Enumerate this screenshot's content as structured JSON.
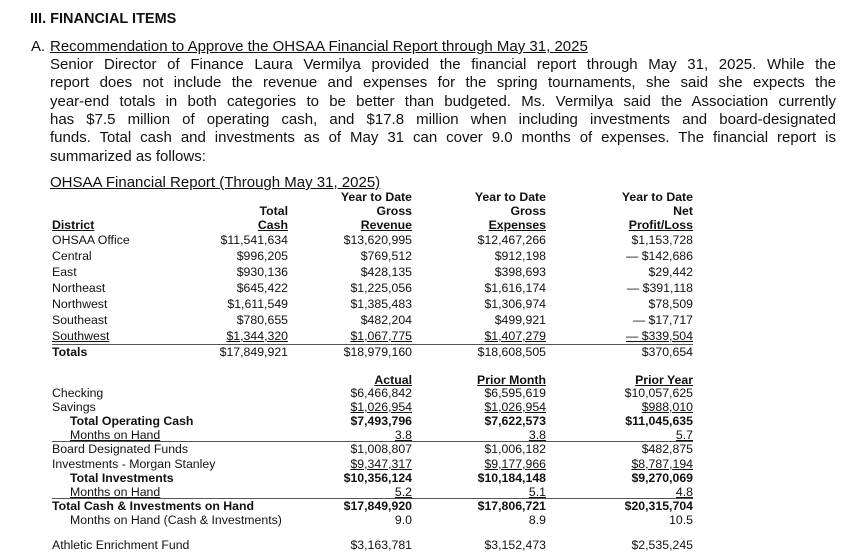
{
  "section_heading": "III. FINANCIAL ITEMS",
  "item": {
    "letter": "A.",
    "title": "Recommendation to Approve the OHSAA Financial Report through May 31, 2025",
    "paragraph_lines": [
      "Senior Director of Finance Laura Vermilya provided the financial report through May 31, 2025. While the",
      "report does not include the revenue and expenses for the spring tournaments, she said she expects the",
      "year-end totals in both categories to be better than budgeted. Ms. Vermilya said the Association currently",
      "has $7.5 million of operating cash, and $17.8 million when including investments and board-designated",
      "funds. Total cash and investments as of May 31 can cover 9.0 months of expenses. The financial report is",
      "summarized as follows:"
    ]
  },
  "report_title": "OHSAA Financial Report (Through May 31, 2025)",
  "district_table": {
    "headers": [
      [
        "",
        "",
        "District"
      ],
      [
        "",
        "Total",
        "Cash"
      ],
      [
        "Year to Date",
        "Gross",
        "Revenue"
      ],
      [
        "Year to Date",
        "Gross",
        "Expenses"
      ],
      [
        "Year to Date",
        "Net",
        "Profit/Loss"
      ]
    ],
    "rows": [
      [
        "OHSAA Office",
        "$11,541,634",
        "$13,620,995",
        "$12,467,266",
        "$1,153,728"
      ],
      [
        "Central",
        "$996,205",
        "$769,512",
        "$912,198",
        "— $142,686"
      ],
      [
        "East",
        "$930,136",
        "$428,135",
        "$398,693",
        "$29,442"
      ],
      [
        "Northeast",
        "$645,422",
        "$1,225,056",
        "$1,616,174",
        "— $391,118"
      ],
      [
        "Northwest",
        "$1,611,549",
        "$1,385,483",
        "$1,306,974",
        "$78,509"
      ],
      [
        "Southeast",
        "$780,655",
        "$482,204",
        "$499,921",
        "— $17,717"
      ],
      [
        "Southwest",
        "$1,344,320",
        "$1,067,775",
        "$1,407,279",
        "— $339,504"
      ]
    ],
    "totals": [
      "Totals",
      "$17,849,921",
      "$18,979,160",
      "$18,608,505",
      "$370,654"
    ]
  },
  "cash_table": {
    "headers": [
      "Actual",
      "Prior Month",
      "Prior Year"
    ],
    "rows": [
      {
        "label": "Checking",
        "values": [
          "$6,466,842",
          "$6,595,619",
          "$10,057,625"
        ]
      },
      {
        "label": "Savings",
        "values": [
          "$1,026,954",
          "$1,026,954",
          "$988,010"
        ]
      },
      {
        "label": "Total Operating Cash",
        "values": [
          "$7,493,796",
          "$7,622,573",
          "$11,045,635"
        ]
      },
      {
        "label": "Months on Hand",
        "values": [
          "3.8",
          "3.8",
          "5.7"
        ]
      },
      {
        "label": "Board Designated Funds",
        "values": [
          "$1,008,807",
          "$1,006,182",
          "$482,875"
        ]
      },
      {
        "label": "Investments - Morgan Stanley",
        "values": [
          "$9,347,317",
          "$9,177,966",
          "$8,787,194"
        ]
      },
      {
        "label": "Total Investments",
        "values": [
          "$10,356,124",
          "$10,184,148",
          "$9,270,069"
        ]
      },
      {
        "label": "Months on Hand",
        "values": [
          "5.2",
          "5.1",
          "4.8"
        ]
      },
      {
        "label": "Total Cash & Investments on Hand",
        "values": [
          "$17,849,920",
          "$17,806,721",
          "$20,315,704"
        ]
      },
      {
        "label": "Months on Hand (Cash & Investments)",
        "values": [
          "9.0",
          "8.9",
          "10.5"
        ]
      },
      {
        "label": "Athletic Enrichment Fund",
        "values": [
          "$3,163,781",
          "$3,152,473",
          "$2,535,245"
        ]
      }
    ]
  }
}
